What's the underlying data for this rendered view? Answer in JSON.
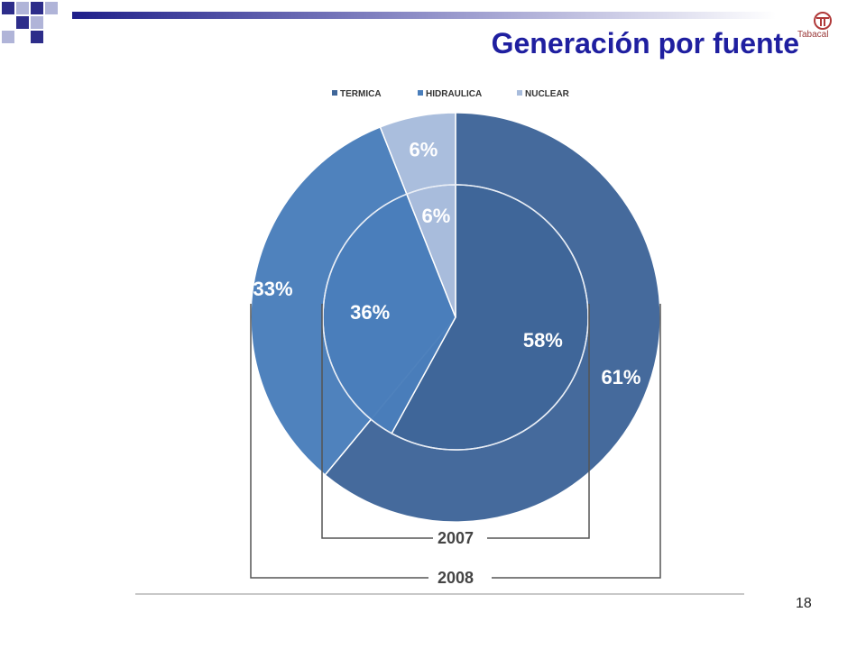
{
  "slide": {
    "title": "Generación por fuente",
    "page_number": "18",
    "logo_text": "Tabacal"
  },
  "colors": {
    "title": "#1f1fa0",
    "termica": "#3f6699",
    "hidraulica": "#4a7ebb",
    "nuclear": "#a8bcdc",
    "square_dark": "#2d2d8a",
    "square_light": "#b0b4d8"
  },
  "chart_data": {
    "type": "pie",
    "title": "",
    "legend": {
      "placement": "top",
      "entries": [
        "TERMICA",
        "HIDRAULICA",
        "NUCLEAR"
      ]
    },
    "series": [
      {
        "name": "2008",
        "ring": "outer",
        "values": [
          61,
          33,
          6
        ],
        "labels": [
          "61%",
          "33%",
          "6%"
        ]
      },
      {
        "name": "2007",
        "ring": "inner",
        "values": [
          58,
          36,
          6
        ],
        "labels": [
          "58%",
          "36%",
          "6%"
        ]
      }
    ],
    "categories": [
      "TERMICA",
      "HIDRAULICA",
      "NUCLEAR"
    ]
  }
}
